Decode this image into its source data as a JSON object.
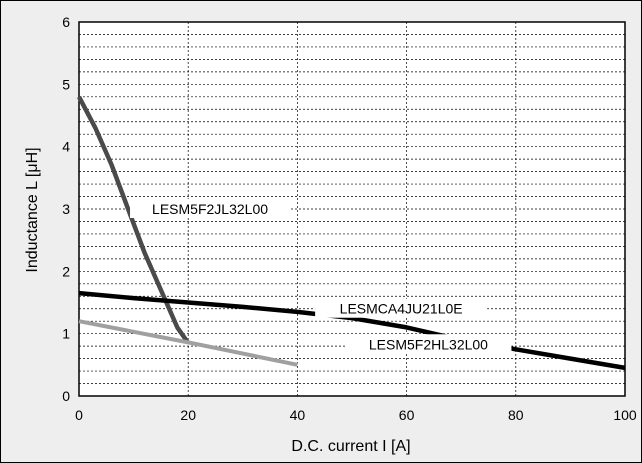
{
  "chart_data": {
    "type": "line",
    "xlabel": "D.C. current  I  [A]",
    "ylabel": "Inductance  L  [μH]",
    "xlim": [
      0,
      100
    ],
    "ylim": [
      0,
      6
    ],
    "x_ticks": [
      "0",
      "20",
      "40",
      "60",
      "80",
      "100"
    ],
    "y_ticks": [
      "0",
      "1",
      "2",
      "3",
      "4",
      "5",
      "6"
    ],
    "grid": true,
    "series": [
      {
        "name": "LESM5F2JL32L00",
        "color": "#4a4a4a",
        "x": [
          0,
          3,
          6,
          9,
          12,
          15,
          18,
          20
        ],
        "y": [
          4.8,
          4.3,
          3.7,
          3.0,
          2.3,
          1.7,
          1.1,
          0.85
        ]
      },
      {
        "name": "LESMCA4JU21L0E",
        "color": "#000000",
        "x": [
          0,
          10,
          20,
          30,
          40,
          50,
          60,
          70,
          80,
          90,
          100
        ],
        "y": [
          1.65,
          1.57,
          1.5,
          1.43,
          1.35,
          1.25,
          1.1,
          0.9,
          0.75,
          0.6,
          0.45
        ]
      },
      {
        "name": "LESM5F2HL32L00",
        "color": "#a0a0a0",
        "x": [
          0,
          10,
          20,
          30,
          40
        ],
        "y": [
          1.2,
          1.03,
          0.86,
          0.68,
          0.5
        ]
      }
    ]
  }
}
